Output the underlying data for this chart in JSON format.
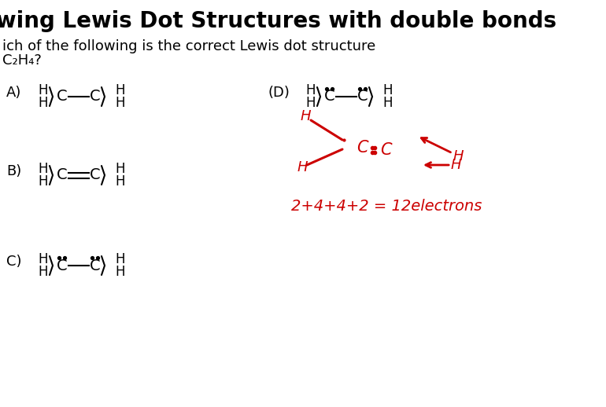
{
  "background_color": "#ffffff",
  "title_text": "wing Lewis Dot Structures with double bonds",
  "title_fontsize": 20,
  "subtitle_line1": "ich of the following is the correct Lewis dot structure",
  "subtitle_line2": "C₂H₄?",
  "subtitle_fontsize": 13,
  "black_color": "#000000",
  "red_color": "#cc0000",
  "fig_w": 7.7,
  "fig_h": 5.18,
  "dpi": 100
}
